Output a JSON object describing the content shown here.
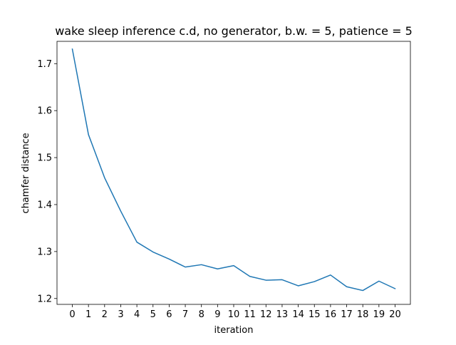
{
  "chart_data": {
    "type": "line",
    "title": "wake sleep inference c.d, no generator, b.w. = 5, patience = 5",
    "xlabel": "iteration",
    "ylabel": "chamfer distance",
    "x": [
      0,
      1,
      2,
      3,
      4,
      5,
      6,
      7,
      8,
      9,
      10,
      11,
      12,
      13,
      14,
      15,
      16,
      17,
      18,
      19,
      20
    ],
    "xticks": [
      "0",
      "1",
      "2",
      "3",
      "4",
      "5",
      "6",
      "7",
      "8",
      "9",
      "10",
      "11",
      "12",
      "13",
      "14",
      "15",
      "16",
      "17",
      "18",
      "19",
      "20"
    ],
    "yticks": [
      1.2,
      1.3,
      1.4,
      1.5,
      1.6,
      1.7
    ],
    "ytick_labels": [
      "1.2",
      "1.3",
      "1.4",
      "1.5",
      "1.6",
      "1.7"
    ],
    "xlim": [
      -0.95,
      20.95
    ],
    "ylim": [
      1.1875,
      1.7475
    ],
    "grid": false,
    "series": [
      {
        "color": "#1f77b4",
        "values": [
          1.731,
          1.549,
          1.457,
          1.386,
          1.32,
          1.299,
          1.284,
          1.267,
          1.272,
          1.263,
          1.27,
          1.247,
          1.239,
          1.24,
          1.227,
          1.236,
          1.25,
          1.225,
          1.217,
          1.237,
          1.221
        ]
      }
    ]
  }
}
